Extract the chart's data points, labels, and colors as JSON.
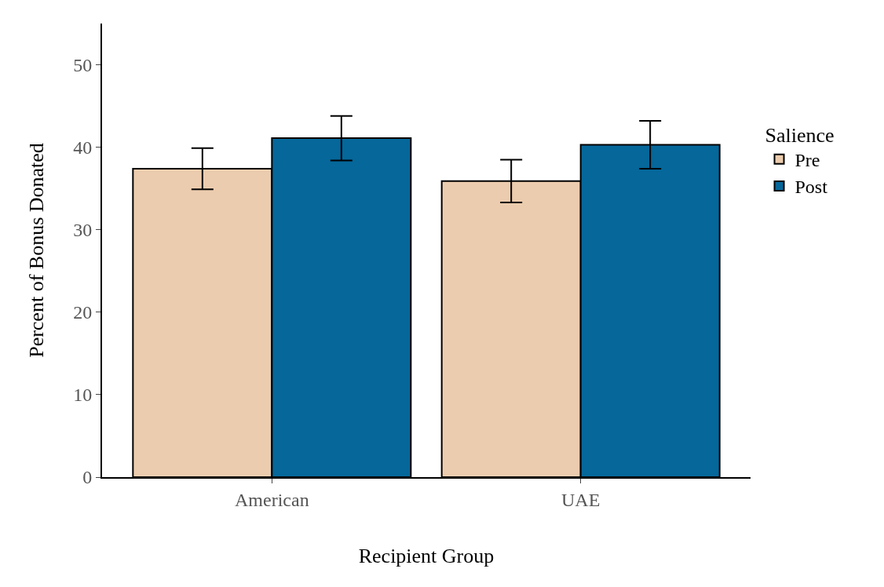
{
  "chart_data": {
    "type": "bar",
    "xlabel": "Recipient Group",
    "ylabel": "Percent of Bonus Donated",
    "legend_title": "Salience",
    "categories": [
      "American",
      "UAE"
    ],
    "series": [
      {
        "name": "Pre",
        "color": "#ecccae",
        "values": [
          37.4,
          35.9
        ],
        "errors": [
          2.5,
          2.6
        ]
      },
      {
        "name": "Post",
        "color": "#05679a",
        "values": [
          41.1,
          40.3
        ],
        "errors": [
          2.7,
          2.9
        ]
      }
    ],
    "ylim": [
      0,
      55
    ],
    "yticks": [
      0,
      10,
      20,
      30,
      40,
      50
    ],
    "legend": "right"
  }
}
